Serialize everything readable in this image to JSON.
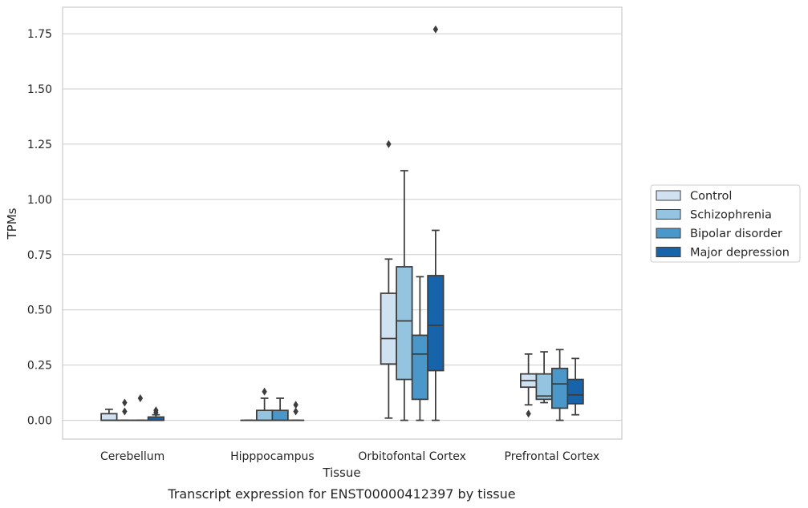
{
  "chart_data": {
    "type": "box",
    "title": "",
    "caption": "Transcript expression for ENST00000412397 by tissue",
    "xlabel": "Tissue",
    "ylabel": "TPMs",
    "ylim": [
      -0.085,
      1.87
    ],
    "yticks": [
      "0.00",
      "0.25",
      "0.50",
      "0.75",
      "1.00",
      "1.25",
      "1.50",
      "1.75"
    ],
    "grid": "horizontal",
    "legend_position": "right",
    "categories": [
      "Cerebellum",
      "Hipppocampus",
      "Orbitofontal Cortex",
      "Prefrontal Cortex"
    ],
    "series": [
      {
        "name": "Control",
        "color": "#d0e1f2",
        "boxes": [
          {
            "min": 0,
            "q1": 0,
            "median": 0,
            "q3": 0.03,
            "max": 0.05,
            "outliers": []
          },
          {
            "min": 0,
            "q1": 0,
            "median": 0,
            "q3": 0,
            "max": 0,
            "outliers": []
          },
          {
            "min": 0.01,
            "q1": 0.255,
            "median": 0.37,
            "q3": 0.575,
            "max": 0.73,
            "outliers": [
              1.25
            ]
          },
          {
            "min": 0.07,
            "q1": 0.15,
            "median": 0.18,
            "q3": 0.21,
            "max": 0.3,
            "outliers": [
              0.03
            ]
          }
        ]
      },
      {
        "name": "Schizophrenia",
        "color": "#94c4df",
        "boxes": [
          {
            "min": 0,
            "q1": 0,
            "median": 0,
            "q3": 0,
            "max": 0,
            "outliers": [
              0.04,
              0.08
            ]
          },
          {
            "min": 0,
            "q1": 0,
            "median": 0,
            "q3": 0.045,
            "max": 0.1,
            "outliers": [
              0.13
            ]
          },
          {
            "min": 0,
            "q1": 0.185,
            "median": 0.45,
            "q3": 0.695,
            "max": 1.13,
            "outliers": []
          },
          {
            "min": 0.08,
            "q1": 0.095,
            "median": 0.11,
            "q3": 0.21,
            "max": 0.31,
            "outliers": []
          }
        ]
      },
      {
        "name": "Bipolar disorder",
        "color": "#4a98c9",
        "boxes": [
          {
            "min": 0,
            "q1": 0,
            "median": 0,
            "q3": 0,
            "max": 0,
            "outliers": [
              0.1
            ]
          },
          {
            "min": 0,
            "q1": 0,
            "median": 0,
            "q3": 0.045,
            "max": 0.1,
            "outliers": []
          },
          {
            "min": 0,
            "q1": 0.095,
            "median": 0.3,
            "q3": 0.385,
            "max": 0.65,
            "outliers": []
          },
          {
            "min": 0,
            "q1": 0.055,
            "median": 0.165,
            "q3": 0.235,
            "max": 0.32,
            "outliers": []
          }
        ]
      },
      {
        "name": "Major depression",
        "color": "#1764ab",
        "boxes": [
          {
            "min": 0,
            "q1": 0,
            "median": 0,
            "q3": 0.015,
            "max": 0.025,
            "outliers": [
              0.035,
              0.045
            ]
          },
          {
            "min": 0,
            "q1": 0,
            "median": 0,
            "q3": 0,
            "max": 0,
            "outliers": [
              0.04,
              0.07
            ]
          },
          {
            "min": 0,
            "q1": 0.225,
            "median": 0.43,
            "q3": 0.655,
            "max": 0.86,
            "outliers": [
              1.77
            ]
          },
          {
            "min": 0.025,
            "q1": 0.075,
            "median": 0.115,
            "q3": 0.185,
            "max": 0.28,
            "outliers": []
          }
        ]
      }
    ]
  }
}
